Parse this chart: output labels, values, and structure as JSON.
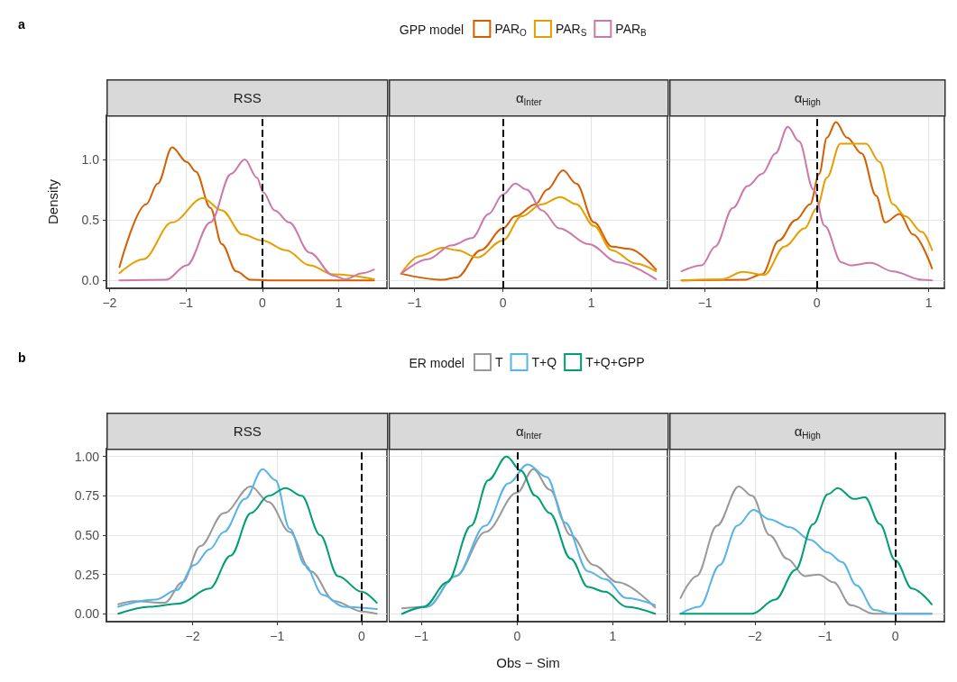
{
  "chart_data": [
    {
      "type": "line",
      "title": "RSS",
      "ylabel": "Density",
      "annotations": [
        "a"
      ],
      "xlim": [
        -2.04,
        1.63
      ],
      "xticks": [
        {
          "value": -2,
          "label": "−2"
        },
        {
          "value": -1,
          "label": "−1"
        },
        {
          "value": 0,
          "label": "0"
        },
        {
          "value": 1,
          "label": "1"
        }
      ],
      "ylim": [
        -0.065,
        1.365
      ],
      "yticks": [
        {
          "value": 0,
          "label": "0.0"
        },
        0.5,
        {
          "value": 1,
          "label": "1.0"
        }
      ],
      "grid": true,
      "marker": "none",
      "line_style": "solid",
      "ref_lines": [
        {
          "axis": "x",
          "value": 0,
          "color": "#000000",
          "line_style": "dashed"
        }
      ],
      "series": [
        {
          "color": "#d55e00",
          "x": [
            -1.87,
            -1.52,
            -1.37,
            -1.18,
            -0.99,
            -0.87,
            -0.68,
            -0.53,
            -0.34,
            -0.15,
            0.2,
            0.8,
            1.46
          ],
          "values": [
            0.11,
            0.63,
            0.8,
            1.1,
            0.98,
            0.9,
            0.6,
            0.3,
            0.075,
            0.005,
            0,
            0,
            0
          ]
        },
        {
          "color": "#e69f00",
          "x": [
            -1.87,
            -1.56,
            -1.18,
            -0.78,
            -0.53,
            -0.26,
            0,
            0.31,
            0.62,
            0.93,
            1.46
          ],
          "values": [
            0.06,
            0.175,
            0.48,
            0.68,
            0.58,
            0.38,
            0.33,
            0.25,
            0.125,
            0.05,
            0.01
          ]
        },
        {
          "color": "#cc79a7",
          "x": [
            -1.87,
            -1.26,
            -0.99,
            -0.68,
            -0.41,
            -0.23,
            -0.07,
            0.01,
            0.16,
            0.35,
            0.62,
            0.93,
            1.08,
            1.31,
            1.46
          ],
          "values": [
            0,
            0.005,
            0.125,
            0.48,
            0.88,
            1.0,
            0.85,
            0.73,
            0.58,
            0.48,
            0.23,
            0.04,
            0.01,
            0.06,
            0.09
          ]
        }
      ]
    },
    {
      "type": "line",
      "title": "α$_{Inter}$",
      "legend": "top",
      "legend_title": "GPP model",
      "tick_labels": "x",
      "xlim": [
        -1.29,
        1.86
      ],
      "xticks": [
        {
          "value": -1,
          "label": "−1"
        },
        {
          "value": 0,
          "label": "0"
        },
        {
          "value": 1,
          "label": "1"
        }
      ],
      "ylim": [
        -0.065,
        1.365
      ],
      "yticks": [
        0,
        0.5,
        1
      ],
      "grid": true,
      "marker": "none",
      "line_style": "solid",
      "ref_lines": [
        {
          "axis": "x",
          "value": 0,
          "color": "#000000",
          "line_style": "dashed"
        }
      ],
      "series": [
        {
          "name": "PAR$_{O}$",
          "color": "#d55e00",
          "x": [
            -1.15,
            -0.68,
            -0.52,
            -0.25,
            0,
            0.14,
            0.37,
            0.5,
            0.68,
            0.83,
            1.03,
            1.23,
            1.43,
            1.73
          ],
          "values": [
            0.055,
            0.005,
            0.025,
            0.25,
            0.43,
            0.53,
            0.63,
            0.75,
            0.91,
            0.8,
            0.48,
            0.28,
            0.26,
            0.09
          ]
        },
        {
          "name": "PAR$_{S}$",
          "color": "#e69f00",
          "x": [
            -1.15,
            -0.95,
            -0.68,
            -0.52,
            -0.29,
            0,
            0.21,
            0.44,
            0.65,
            0.83,
            1.03,
            1.23,
            1.5,
            1.73
          ],
          "values": [
            0.055,
            0.2,
            0.27,
            0.25,
            0.19,
            0.33,
            0.53,
            0.63,
            0.69,
            0.63,
            0.45,
            0.25,
            0.14,
            0.075
          ]
        },
        {
          "name": "PAR$_{B}$",
          "color": "#cc79a7",
          "x": [
            -1.15,
            -0.85,
            -0.58,
            -0.35,
            -0.16,
            0,
            0.14,
            0.27,
            0.44,
            0.64,
            0.97,
            1.3,
            1.73
          ],
          "values": [
            0.055,
            0.175,
            0.29,
            0.35,
            0.55,
            0.71,
            0.8,
            0.75,
            0.58,
            0.43,
            0.3,
            0.15,
            0.01
          ]
        }
      ]
    },
    {
      "type": "line",
      "title": "α$_{High}$",
      "tick_labels": "x",
      "xlim": [
        -1.32,
        1.14
      ],
      "xticks": [
        {
          "value": -1,
          "label": "−1"
        },
        {
          "value": 0,
          "label": "0"
        },
        {
          "value": 1,
          "label": "1"
        }
      ],
      "ylim": [
        -0.065,
        1.365
      ],
      "yticks": [
        0,
        0.5,
        1
      ],
      "grid": true,
      "marker": "none",
      "line_style": "solid",
      "ref_lines": [
        {
          "axis": "x",
          "value": 0,
          "color": "#000000",
          "line_style": "dashed"
        }
      ],
      "series": [
        {
          "color": "#d55e00",
          "x": [
            -1.21,
            -0.65,
            -0.49,
            -0.34,
            -0.19,
            -0.06,
            0.02,
            0.09,
            0.17,
            0.27,
            0.4,
            0.53,
            0.61,
            0.74,
            0.86,
            1.03
          ],
          "values": [
            0,
            0.005,
            0.05,
            0.33,
            0.5,
            0.63,
            0.88,
            1.18,
            1.31,
            1.18,
            1.05,
            0.7,
            0.48,
            0.55,
            0.38,
            0.1
          ]
        },
        {
          "color": "#e69f00",
          "x": [
            -1.21,
            -0.85,
            -0.66,
            -0.47,
            -0.29,
            -0.11,
            0,
            0.09,
            0.21,
            0.33,
            0.44,
            0.56,
            0.68,
            0.79,
            0.94,
            1.03
          ],
          "values": [
            0,
            0.01,
            0.07,
            0.045,
            0.28,
            0.43,
            0.6,
            0.85,
            1.13,
            1.13,
            1.13,
            0.98,
            0.63,
            0.53,
            0.4,
            0.25
          ]
        },
        {
          "color": "#cc79a7",
          "x": [
            -1.21,
            -1.03,
            -0.91,
            -0.75,
            -0.62,
            -0.49,
            -0.37,
            -0.26,
            -0.16,
            -0.03,
            0.07,
            0.22,
            0.3,
            0.48,
            0.68,
            0.94,
            1.03
          ],
          "values": [
            0.075,
            0.125,
            0.28,
            0.6,
            0.78,
            0.88,
            1.05,
            1.27,
            1.15,
            0.75,
            0.45,
            0.15,
            0.125,
            0.145,
            0.075,
            0.005,
            0
          ]
        }
      ]
    },
    {
      "type": "line",
      "title": "RSS",
      "annotations": [
        "b"
      ],
      "xlim": [
        -3.02,
        0.3
      ],
      "xticks": [
        {
          "value": -2,
          "label": "−2"
        },
        {
          "value": -1,
          "label": "−1"
        },
        {
          "value": 0,
          "label": "0"
        }
      ],
      "ylim": [
        -0.05,
        1.05
      ],
      "yticks": [
        {
          "value": 0,
          "label": "0.00"
        },
        0.25,
        {
          "value": 0.5,
          "label": "0.50"
        },
        0.75,
        {
          "value": 1,
          "label": "1.00"
        }
      ],
      "grid": true,
      "marker": "none",
      "line_style": "solid",
      "ref_lines": [
        {
          "axis": "x",
          "value": 0,
          "color": "#000000",
          "line_style": "dashed"
        }
      ],
      "series": [
        {
          "color": "#999999",
          "x": [
            -2.88,
            -2.69,
            -2.33,
            -2.12,
            -1.91,
            -1.63,
            -1.31,
            -1.1,
            -0.85,
            -0.6,
            -0.32,
            0,
            0.18
          ],
          "values": [
            0.06,
            0.08,
            0.07,
            0.2,
            0.43,
            0.64,
            0.81,
            0.71,
            0.52,
            0.27,
            0.08,
            0.015,
            0
          ]
        },
        {
          "color": "#56b4e9",
          "x": [
            -2.88,
            -2.44,
            -2.19,
            -1.98,
            -1.8,
            -1.63,
            -1.38,
            -1.17,
            -1.02,
            -0.85,
            -0.67,
            -0.46,
            -0.21,
            0.18
          ],
          "values": [
            0.045,
            0.09,
            0.15,
            0.31,
            0.41,
            0.52,
            0.73,
            0.92,
            0.85,
            0.54,
            0.31,
            0.12,
            0.045,
            0.03
          ]
        },
        {
          "color": "#009e73",
          "x": [
            -2.88,
            -2.51,
            -2.16,
            -1.8,
            -1.55,
            -1.31,
            -1.1,
            -0.9,
            -0.71,
            -0.49,
            -0.28,
            0,
            0.18
          ],
          "values": [
            0,
            0.045,
            0.065,
            0.16,
            0.37,
            0.64,
            0.75,
            0.8,
            0.75,
            0.5,
            0.24,
            0.14,
            0.07
          ]
        }
      ]
    },
    {
      "type": "line",
      "title": "α$_{Inter}$",
      "xlabel": "Obs − Sim",
      "legend": "top",
      "legend_title": "ER model",
      "tick_labels": "x",
      "xlim": [
        -1.34,
        1.57
      ],
      "xticks": [
        {
          "value": -1,
          "label": "−1"
        },
        {
          "value": 0,
          "label": "0"
        },
        {
          "value": 1,
          "label": "1"
        }
      ],
      "ylim": [
        -0.05,
        1.05
      ],
      "yticks": [
        0,
        0.25,
        0.5,
        0.75,
        1
      ],
      "grid": true,
      "marker": "none",
      "line_style": "solid",
      "ref_lines": [
        {
          "axis": "x",
          "value": 0,
          "color": "#000000",
          "line_style": "dashed"
        }
      ],
      "series": [
        {
          "name": "T",
          "color": "#999999",
          "x": [
            -1.2,
            -0.94,
            -0.64,
            -0.33,
            0,
            0.17,
            0.34,
            0.56,
            0.8,
            1.05,
            1.44
          ],
          "values": [
            0.035,
            0.045,
            0.24,
            0.52,
            0.77,
            0.92,
            0.79,
            0.5,
            0.31,
            0.2,
            0.04
          ]
        },
        {
          "name": "T+Q",
          "color": "#56b4e9",
          "x": [
            -1.2,
            -0.94,
            -0.64,
            -0.33,
            -0.09,
            0.11,
            0.31,
            0.5,
            0.74,
            0.92,
            1.14,
            1.44
          ],
          "values": [
            0,
            0.045,
            0.24,
            0.56,
            0.83,
            0.95,
            0.87,
            0.58,
            0.27,
            0.22,
            0.1,
            0.055
          ]
        },
        {
          "name": "T+Q+GPP",
          "color": "#009e73",
          "x": [
            -1.2,
            -0.97,
            -0.73,
            -0.48,
            -0.3,
            -0.11,
            0.04,
            0.19,
            0.34,
            0.56,
            0.74,
            0.92,
            1.14,
            1.44
          ],
          "values": [
            0,
            0.045,
            0.2,
            0.56,
            0.85,
            1.0,
            0.91,
            0.75,
            0.64,
            0.35,
            0.17,
            0.14,
            0.045,
            0
          ]
        }
      ]
    },
    {
      "type": "line",
      "title": "α$_{High}$",
      "tick_labels": "x",
      "xlim": [
        -3.22,
        0.7
      ],
      "xticks": [
        {
          "value": -3,
          "label": null
        },
        {
          "value": -2,
          "label": "−2"
        },
        {
          "value": -1,
          "label": "−1"
        },
        {
          "value": 0,
          "label": "0"
        }
      ],
      "ylim": [
        -0.05,
        1.05
      ],
      "yticks": [
        0,
        0.25,
        0.5,
        0.75,
        1
      ],
      "grid": true,
      "marker": "none",
      "line_style": "solid",
      "ref_lines": [
        {
          "axis": "x",
          "value": 0,
          "color": "#000000",
          "line_style": "dashed"
        }
      ],
      "series": [
        {
          "color": "#999999",
          "x": [
            -3.06,
            -2.83,
            -2.54,
            -2.23,
            -2.04,
            -1.79,
            -1.54,
            -1.29,
            -1.09,
            -0.88,
            -0.63,
            -0.3,
            0.52
          ],
          "values": [
            0.1,
            0.24,
            0.56,
            0.81,
            0.75,
            0.5,
            0.35,
            0.24,
            0.25,
            0.2,
            0.054,
            0,
            0
          ]
        },
        {
          "color": "#56b4e9",
          "x": [
            -3.06,
            -2.79,
            -2.5,
            -2.25,
            -2.02,
            -1.79,
            -1.5,
            -1.21,
            -0.96,
            -0.76,
            -0.55,
            -0.3,
            -0.05,
            0.52
          ],
          "values": [
            0,
            0.045,
            0.31,
            0.56,
            0.66,
            0.6,
            0.55,
            0.47,
            0.39,
            0.33,
            0.18,
            0.025,
            0,
            0
          ]
        },
        {
          "color": "#009e73",
          "x": [
            -3.06,
            -2.04,
            -1.71,
            -1.42,
            -1.17,
            -0.96,
            -0.82,
            -0.59,
            -0.43,
            -0.22,
            0,
            0.24,
            0.52
          ],
          "values": [
            0,
            0,
            0.09,
            0.28,
            0.57,
            0.76,
            0.8,
            0.73,
            0.74,
            0.57,
            0.34,
            0.16,
            0.06
          ]
        }
      ]
    }
  ]
}
